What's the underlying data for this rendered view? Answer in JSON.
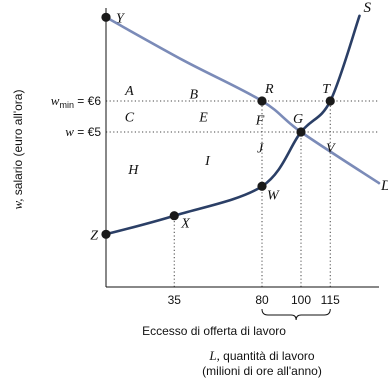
{
  "chart_data": {
    "type": "line",
    "title": "",
    "xlabel": "quantità di lavoro",
    "xlabel_symbol": "L,",
    "xlabel_unit": "(milioni di ore all'anno)",
    "ylabel": "salario (euro all'ora)",
    "ylabel_symbol": "w,",
    "x_ticks": [
      {
        "value": 35,
        "label": "35"
      },
      {
        "value": 80,
        "label": "80"
      },
      {
        "value": 100,
        "label": "100"
      },
      {
        "value": 115,
        "label": "115"
      }
    ],
    "y_ticks": [
      {
        "value": 6,
        "prefix": "w",
        "subscript": "min",
        "label": "= €6"
      },
      {
        "value": 5,
        "prefix": "w",
        "subscript": "",
        "label": "= €5"
      }
    ],
    "xlim": [
      0,
      140
    ],
    "ylim": [
      0,
      9
    ],
    "brace_label": "Eccesso di offerta di lavoro",
    "brace_range": [
      80,
      115
    ],
    "grid": false,
    "series": [
      {
        "name": "S",
        "color": "#2b3f66",
        "points": [
          [
            0,
            1.7
          ],
          [
            35,
            2.3
          ],
          [
            80,
            3.25
          ],
          [
            100,
            5
          ],
          [
            115,
            6
          ],
          [
            130,
            8.75
          ]
        ]
      },
      {
        "name": "D",
        "color": "#7b8bb8",
        "points": [
          [
            0,
            8.7
          ],
          [
            40,
            7.3
          ],
          [
            80,
            6
          ],
          [
            100,
            5
          ],
          [
            140,
            3.35
          ]
        ]
      }
    ],
    "reference_lines": [
      {
        "axis": "y",
        "value": 6,
        "from": 0,
        "to": 140,
        "style": "dotted"
      },
      {
        "axis": "y",
        "value": 5,
        "from": 0,
        "to": 140,
        "style": "dotted"
      },
      {
        "axis": "x",
        "value": 35,
        "from": 0,
        "to": 2.3,
        "style": "dotted"
      },
      {
        "axis": "x",
        "value": 80,
        "from": 0,
        "to": 6,
        "style": "dotted"
      },
      {
        "axis": "x",
        "value": 100,
        "from": 0,
        "to": 5,
        "style": "dotted"
      },
      {
        "axis": "x",
        "value": 115,
        "from": 0,
        "to": 6,
        "style": "dotted"
      }
    ],
    "points": [
      {
        "label": "Y",
        "x": 0,
        "y": 8.7
      },
      {
        "label": "R",
        "x": 80,
        "y": 6
      },
      {
        "label": "T",
        "x": 115,
        "y": 6
      },
      {
        "label": "G",
        "x": 100,
        "y": 5
      },
      {
        "label": "W",
        "x": 80,
        "y": 3.25
      },
      {
        "label": "X",
        "x": 35,
        "y": 2.3
      },
      {
        "label": "Z",
        "x": 0,
        "y": 1.7
      }
    ],
    "region_labels": [
      {
        "label": "A",
        "x": 12,
        "y": 6.35
      },
      {
        "label": "B",
        "x": 45,
        "y": 6.25
      },
      {
        "label": "C",
        "x": 12,
        "y": 5.5
      },
      {
        "label": "E",
        "x": 50,
        "y": 5.5
      },
      {
        "label": "F",
        "x": 79,
        "y": 5.4
      },
      {
        "label": "J",
        "x": 79,
        "y": 4.5
      },
      {
        "label": "I",
        "x": 52,
        "y": 4.1
      },
      {
        "label": "H",
        "x": 14,
        "y": 3.8
      },
      {
        "label": "V",
        "x": 115,
        "y": 4.5
      }
    ]
  }
}
